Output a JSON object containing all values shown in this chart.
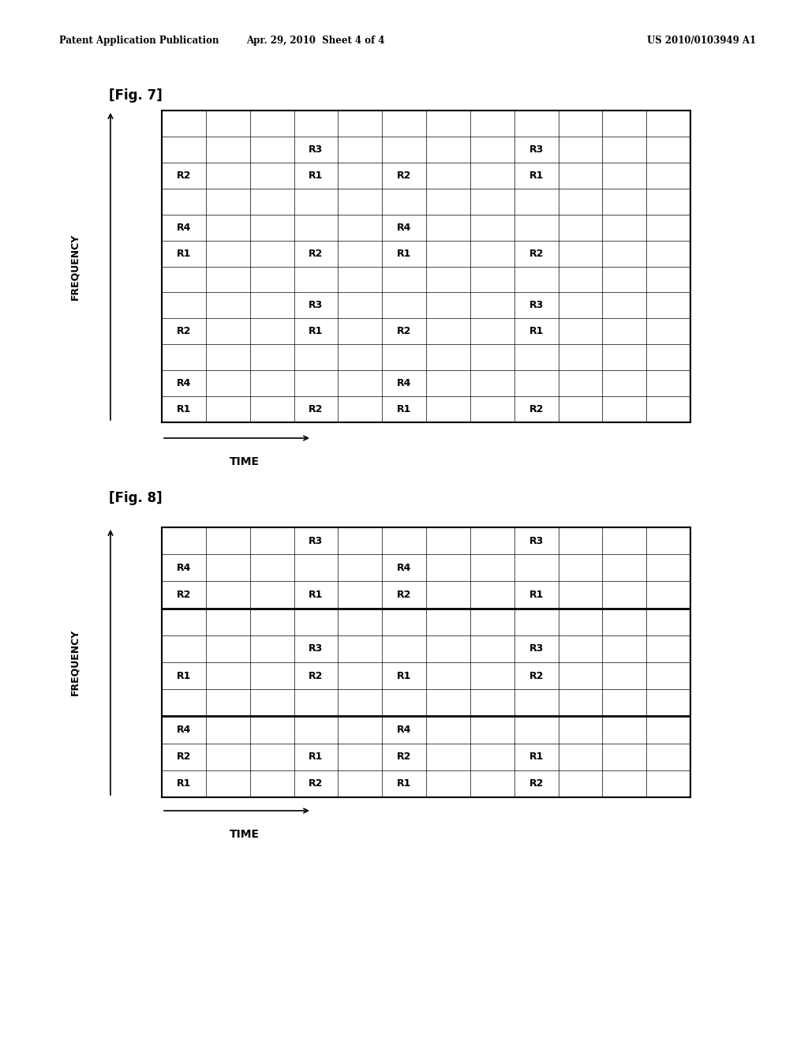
{
  "header_left": "Patent Application Publication",
  "header_center": "Apr. 29, 2010  Sheet 4 of 4",
  "header_right": "US 2010/0103949 A1",
  "fig7_label": "[Fig. 7]",
  "fig8_label": "[Fig. 8]",
  "axis_freq": "FREQUENCY",
  "axis_time": "TIME",
  "background": "#ffffff",
  "fig7_ncols": 12,
  "fig7_nrows": 12,
  "fig8_ncols": 12,
  "fig8_nrows": 10,
  "fig7_labels": [
    [
      3,
      10,
      "R3"
    ],
    [
      8,
      10,
      "R3"
    ],
    [
      0,
      9,
      "R2"
    ],
    [
      3,
      9,
      "R1"
    ],
    [
      5,
      9,
      "R2"
    ],
    [
      8,
      9,
      "R1"
    ],
    [
      0,
      7,
      "R4"
    ],
    [
      5,
      7,
      "R4"
    ],
    [
      0,
      6,
      "R1"
    ],
    [
      3,
      6,
      "R2"
    ],
    [
      5,
      6,
      "R1"
    ],
    [
      8,
      6,
      "R2"
    ],
    [
      3,
      4,
      "R3"
    ],
    [
      8,
      4,
      "R3"
    ],
    [
      0,
      3,
      "R2"
    ],
    [
      3,
      3,
      "R1"
    ],
    [
      5,
      3,
      "R2"
    ],
    [
      8,
      3,
      "R1"
    ],
    [
      0,
      1,
      "R4"
    ],
    [
      5,
      1,
      "R4"
    ],
    [
      0,
      0,
      "R1"
    ],
    [
      3,
      0,
      "R2"
    ],
    [
      5,
      0,
      "R1"
    ],
    [
      8,
      0,
      "R2"
    ]
  ],
  "fig8_labels": [
    [
      0,
      8,
      "R4"
    ],
    [
      5,
      8,
      "R4"
    ],
    [
      0,
      7,
      "R2"
    ],
    [
      3,
      7,
      "R1"
    ],
    [
      5,
      7,
      "R2"
    ],
    [
      8,
      7,
      "R1"
    ],
    [
      3,
      5,
      "R3"
    ],
    [
      8,
      5,
      "R3"
    ],
    [
      0,
      4,
      "R1"
    ],
    [
      3,
      4,
      "R2"
    ],
    [
      5,
      4,
      "R1"
    ],
    [
      8,
      4,
      "R2"
    ],
    [
      0,
      2,
      "R4"
    ],
    [
      5,
      2,
      "R4"
    ],
    [
      0,
      1,
      "R2"
    ],
    [
      3,
      1,
      "R1"
    ],
    [
      5,
      1,
      "R2"
    ],
    [
      8,
      1,
      "R1"
    ],
    [
      3,
      9,
      "R3"
    ],
    [
      8,
      9,
      "R3"
    ],
    [
      0,
      0,
      "R1"
    ],
    [
      3,
      0,
      "R2"
    ],
    [
      5,
      0,
      "R1"
    ],
    [
      8,
      0,
      "R2"
    ]
  ]
}
